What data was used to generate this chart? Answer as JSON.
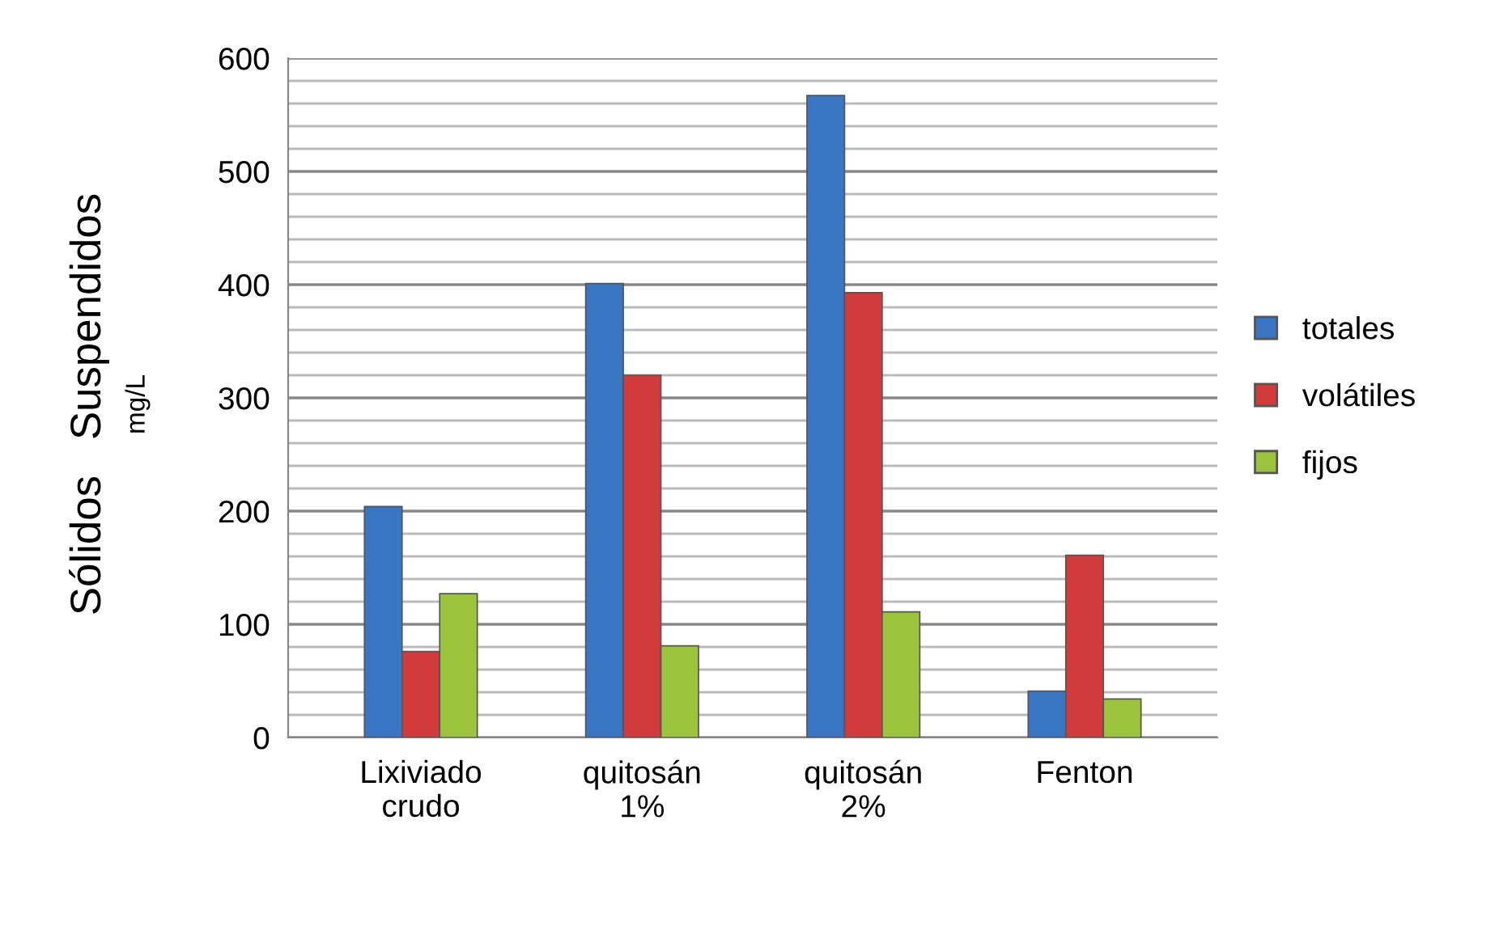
{
  "chart_data": {
    "type": "bar",
    "ylabel": "Sólidos   Suspendidos\nmg/L",
    "categories": [
      "Lixiviado\ncrudo",
      "quitosán\n1%",
      "quitosán\n2%",
      "Fenton"
    ],
    "series": [
      {
        "name": "totales",
        "color": "#3a75c4",
        "values": [
          204,
          401,
          567,
          41
        ]
      },
      {
        "name": "volátiles",
        "color": "#d13b3b",
        "values": [
          76,
          320,
          393,
          161
        ]
      },
      {
        "name": "fijos",
        "color": "#9bc43c",
        "values": [
          127,
          81,
          111,
          34
        ]
      }
    ],
    "ylim": [
      0,
      600
    ],
    "yticks": [
      0,
      {
        "value": 20,
        "label": null
      },
      {
        "value": 40,
        "label": null
      },
      {
        "value": 60,
        "label": null
      },
      {
        "value": 80,
        "label": null
      },
      100,
      {
        "value": 120,
        "label": null
      },
      {
        "value": 140,
        "label": null
      },
      {
        "value": 160,
        "label": null
      },
      {
        "value": 180,
        "label": null
      },
      200,
      {
        "value": 220,
        "label": null
      },
      {
        "value": 240,
        "label": null
      },
      {
        "value": 260,
        "label": null
      },
      {
        "value": 280,
        "label": null
      },
      300,
      {
        "value": 320,
        "label": null
      },
      {
        "value": 340,
        "label": null
      },
      {
        "value": 360,
        "label": null
      },
      {
        "value": 380,
        "label": null
      },
      400,
      {
        "value": 420,
        "label": null
      },
      {
        "value": 440,
        "label": null
      },
      {
        "value": 460,
        "label": null
      },
      {
        "value": 480,
        "label": null
      },
      500,
      {
        "value": 520,
        "label": null
      },
      {
        "value": 540,
        "label": null
      },
      {
        "value": 560,
        "label": null
      },
      {
        "value": 580,
        "label": null
      },
      600
    ],
    "grid": "y",
    "legend": "right"
  }
}
